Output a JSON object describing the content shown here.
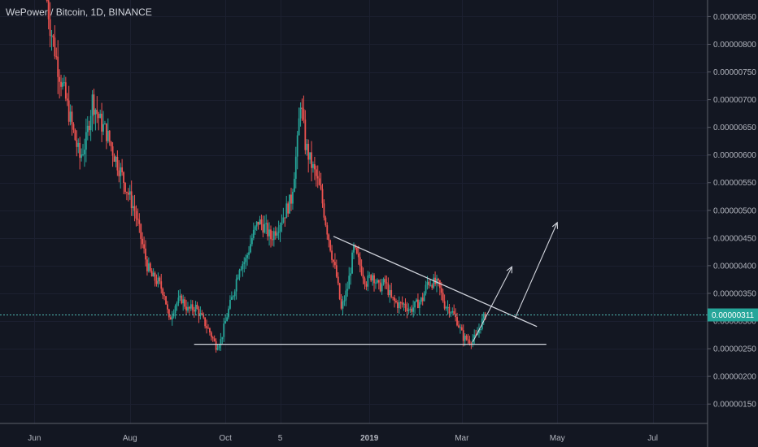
{
  "header": {
    "title": "WePower / Bitcoin, 1D, BINANCE"
  },
  "chart_data": {
    "type": "candlestick",
    "symbol": "WePower / Bitcoin",
    "interval": "1D",
    "exchange": "BINANCE",
    "y_ticks": [
      "0.00000850",
      "0.00000800",
      "0.00000750",
      "0.00000700",
      "0.00000650",
      "0.00000600",
      "0.00000550",
      "0.00000500",
      "0.00000450",
      "0.00000400",
      "0.00000350",
      "0.00000300",
      "0.00000250",
      "0.00000200",
      "0.00000150"
    ],
    "y_tick_values": [
      850,
      800,
      750,
      700,
      650,
      600,
      550,
      500,
      450,
      400,
      350,
      300,
      250,
      200,
      150
    ],
    "ylim": [
      115,
      880
    ],
    "x_ticks": [
      "Jun",
      "Aug",
      "Oct",
      "5",
      "2019",
      "Mar",
      "May",
      "Jul"
    ],
    "x_tick_days": [
      0,
      61,
      122,
      157,
      214,
      273,
      334,
      395
    ],
    "xlim": [
      -22,
      430
    ],
    "x_tick_bold": "2019",
    "current_price": "0.00000311",
    "current_price_value": 311,
    "price_path": [
      [
        8,
        880
      ],
      [
        10,
        835
      ],
      [
        15,
        760
      ],
      [
        20,
        700
      ],
      [
        25,
        640
      ],
      [
        29,
        595
      ],
      [
        33,
        625
      ],
      [
        37,
        700
      ],
      [
        42,
        660
      ],
      [
        46,
        640
      ],
      [
        51,
        600
      ],
      [
        55,
        570
      ],
      [
        60,
        530
      ],
      [
        64,
        500
      ],
      [
        68,
        450
      ],
      [
        72,
        400
      ],
      [
        75,
        380
      ],
      [
        79,
        370
      ],
      [
        83,
        350
      ],
      [
        86,
        300
      ],
      [
        90,
        330
      ],
      [
        94,
        340
      ],
      [
        98,
        320
      ],
      [
        103,
        325
      ],
      [
        108,
        300
      ],
      [
        112,
        280
      ],
      [
        116,
        255
      ],
      [
        119,
        265
      ],
      [
        123,
        310
      ],
      [
        127,
        350
      ],
      [
        131,
        400
      ],
      [
        135,
        410
      ],
      [
        139,
        450
      ],
      [
        143,
        480
      ],
      [
        147,
        470
      ],
      [
        151,
        450
      ],
      [
        155,
        470
      ],
      [
        159,
        490
      ],
      [
        164,
        520
      ],
      [
        168,
        620
      ],
      [
        170,
        700
      ],
      [
        173,
        620
      ],
      [
        176,
        590
      ],
      [
        180,
        560
      ],
      [
        183,
        530
      ],
      [
        186,
        480
      ],
      [
        190,
        420
      ],
      [
        193,
        380
      ],
      [
        196,
        320
      ],
      [
        200,
        360
      ],
      [
        204,
        430
      ],
      [
        208,
        400
      ],
      [
        212,
        370
      ],
      [
        216,
        385
      ],
      [
        220,
        360
      ],
      [
        224,
        370
      ],
      [
        228,
        340
      ],
      [
        232,
        330
      ],
      [
        236,
        330
      ],
      [
        240,
        320
      ],
      [
        244,
        330
      ],
      [
        248,
        340
      ],
      [
        251,
        370
      ],
      [
        254,
        370
      ],
      [
        258,
        365
      ],
      [
        262,
        330
      ],
      [
        266,
        320
      ],
      [
        270,
        300
      ],
      [
        274,
        270
      ],
      [
        278,
        265
      ],
      [
        282,
        270
      ],
      [
        286,
        300
      ],
      [
        288,
        311
      ]
    ],
    "annotations": {
      "support_line": {
        "from": [
          102,
          258
        ],
        "to": [
          327,
          258
        ]
      },
      "resistance_line": {
        "from": [
          191,
          453
        ],
        "to": [
          321,
          290
        ]
      },
      "arrow_1": {
        "from": [
          280,
          262
        ],
        "to": [
          305,
          398
        ]
      },
      "arrow_2": {
        "from": [
          307,
          305
        ],
        "to": [
          334,
          478
        ]
      }
    },
    "colors": {
      "background": "#131722",
      "up": "#26a69a",
      "down": "#ef5350",
      "grid": "#1c2030",
      "axis_line": "#5d606b",
      "axis_text": "#b2b5be",
      "price_line": "#4fb8b0",
      "price_label_bg": "#26a69a",
      "drawing": "#d1d4dc"
    },
    "grid": true
  }
}
